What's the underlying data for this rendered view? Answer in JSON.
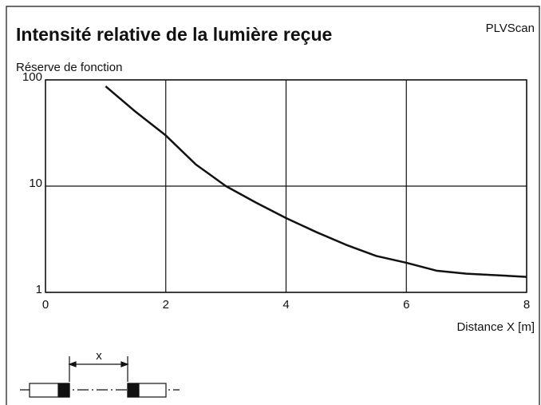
{
  "chart_data": {
    "type": "line",
    "title": "Intensité relative de la lumière reçue",
    "subtitle": "PLVScan",
    "y_label": "Réserve de fonction",
    "x_label": "Distance X [m]",
    "annotations": [
      "x"
    ],
    "xlim": [
      0,
      8
    ],
    "xticks": [
      0,
      2,
      4,
      6,
      8
    ],
    "ylim": [
      1,
      100
    ],
    "yticks": [
      1,
      10,
      100
    ],
    "log_y": true,
    "grid": true,
    "series": [
      {
        "color": "#111111",
        "x": [
          1,
          1.5,
          2,
          2.5,
          3,
          3.5,
          4,
          4.5,
          5,
          5.5,
          6,
          6.5,
          7,
          8
        ],
        "values": [
          87,
          50,
          30,
          16,
          10,
          7,
          5,
          3.7,
          2.8,
          2.2,
          1.9,
          1.6,
          1.5,
          1.4
        ]
      }
    ]
  }
}
